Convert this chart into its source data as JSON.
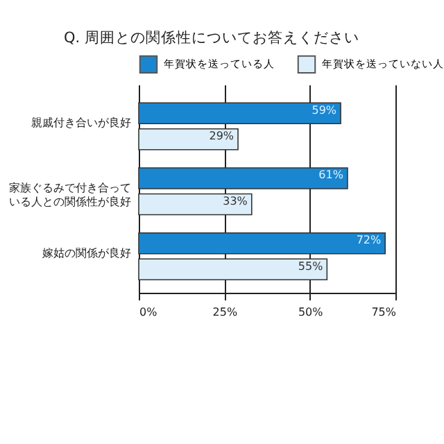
{
  "chart_data": {
    "type": "bar",
    "orientation": "horizontal",
    "title": "Q. 周囲との関係性についてお答えください",
    "categories": [
      "親戚付き合いが良好",
      "家族ぐるみで付き合っている人との関係性が良好",
      "嫁姑の関係が良好"
    ],
    "series": [
      {
        "name": "年賀状を送っている人",
        "color": "#1a86d0",
        "values": [
          59,
          61,
          72
        ],
        "value_labels": [
          "59%",
          "61%",
          "72%"
        ]
      },
      {
        "name": "年賀状を送っていない人",
        "color": "#dceefa",
        "values": [
          29,
          33,
          55
        ],
        "value_labels": [
          "29%",
          "33%",
          "55%"
        ]
      }
    ],
    "xlim": [
      0,
      75
    ],
    "xticks": [
      {
        "value": 0,
        "label": "0%"
      },
      {
        "value": 25,
        "label": "25%"
      },
      {
        "value": 50,
        "label": "50%"
      },
      {
        "value": 75,
        "label": "75%"
      }
    ],
    "grid": "x",
    "legend": "top"
  }
}
